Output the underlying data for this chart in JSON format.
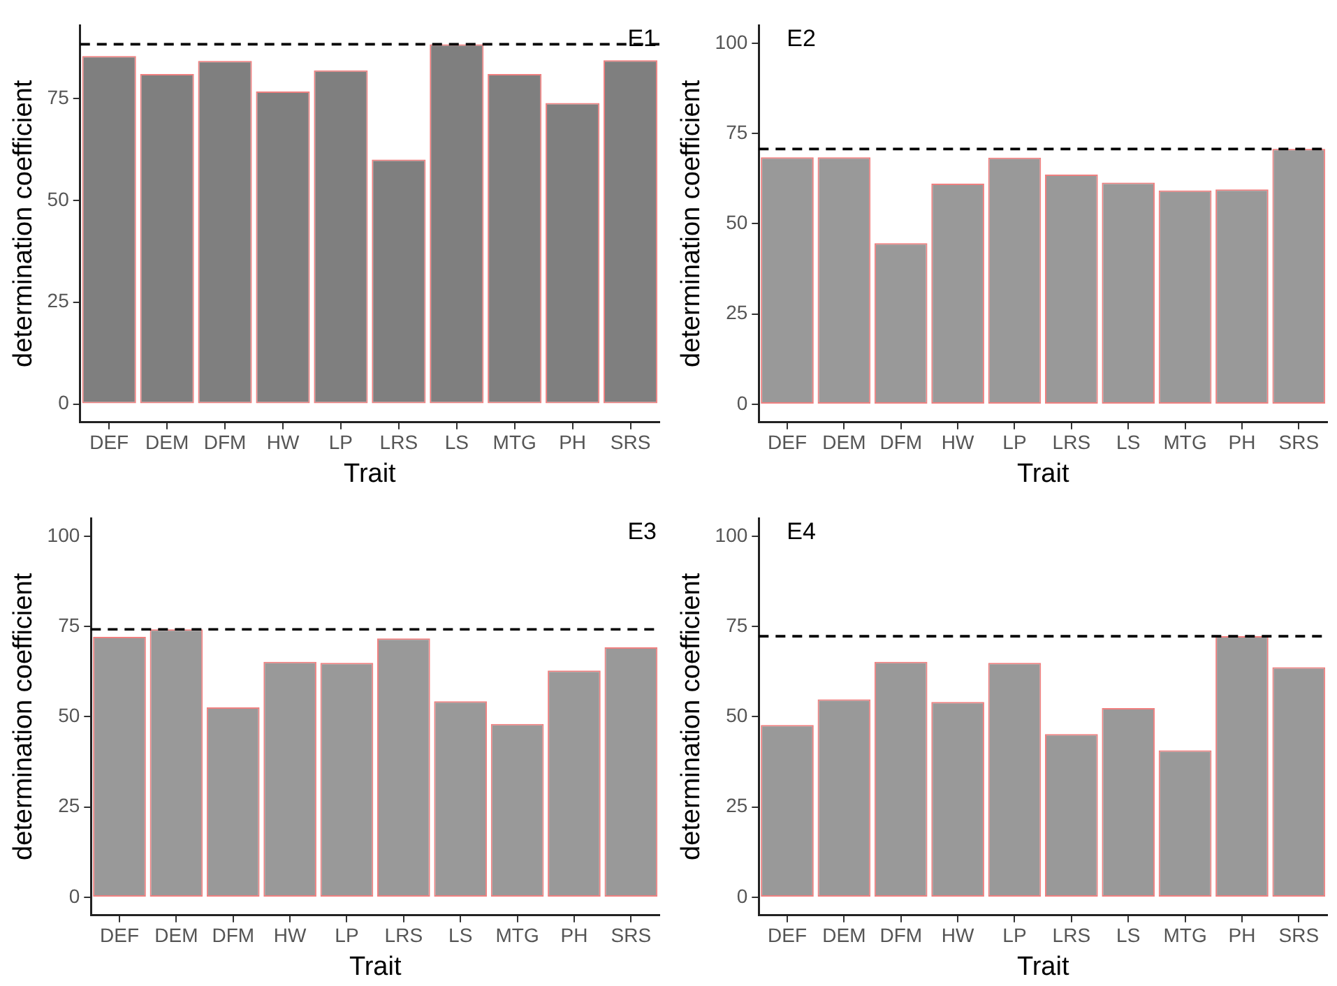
{
  "chart_data": [
    {
      "type": "bar",
      "xlabel": "Trait",
      "ylabel": "determination coefficient",
      "annotations": [
        "E1"
      ],
      "categories": [
        "DEF",
        "DEM",
        "DFM",
        "HW",
        "LP",
        "LRS",
        "LS",
        "MTG",
        "PH",
        "SRS"
      ],
      "series": [
        {
          "color": "#7f7f7f",
          "values": [
            85.4,
            81.0,
            84.2,
            76.7,
            81.9,
            60.0,
            88.3,
            81.0,
            73.9,
            84.4
          ]
        }
      ],
      "ylim": [
        -4.5,
        93
      ],
      "yticks": [
        0,
        25,
        50,
        75
      ],
      "grid": false,
      "legend": false,
      "ref_lines": [
        {
          "axis": "y",
          "value": 88.3,
          "label": null,
          "color": "#000000",
          "line_style": "dashed"
        }
      ]
    },
    {
      "type": "bar",
      "xlabel": "Trait",
      "ylabel": "determination coefficient",
      "annotations": [
        "E2"
      ],
      "categories": [
        "DEF",
        "DEM",
        "DFM",
        "HW",
        "LP",
        "LRS",
        "LS",
        "MTG",
        "PH",
        "SRS"
      ],
      "series": [
        {
          "color": "#999999",
          "values": [
            68.4,
            68.4,
            44.6,
            61.1,
            68.3,
            63.6,
            61.4,
            59.2,
            59.5,
            70.7
          ]
        }
      ],
      "ylim": [
        -5,
        105
      ],
      "yticks": [
        0,
        25,
        50,
        75,
        100
      ],
      "grid": false,
      "legend": false,
      "ref_lines": [
        {
          "axis": "y",
          "value": 70.7,
          "label": null,
          "color": "#000000",
          "line_style": "dashed"
        }
      ]
    },
    {
      "type": "bar",
      "xlabel": "Trait",
      "ylabel": "determination coefficient",
      "annotations": [
        "E3"
      ],
      "categories": [
        "DEF",
        "DEM",
        "DFM",
        "HW",
        "LP",
        "LRS",
        "LS",
        "MTG",
        "PH",
        "SRS"
      ],
      "series": [
        {
          "color": "#999999",
          "values": [
            72.1,
            74.2,
            52.6,
            65.2,
            64.9,
            71.7,
            54.3,
            48.0,
            62.8,
            69.2
          ]
        }
      ],
      "ylim": [
        -5,
        105
      ],
      "yticks": [
        0,
        25,
        50,
        75,
        100
      ],
      "grid": false,
      "legend": false,
      "ref_lines": [
        {
          "axis": "y",
          "value": 74.2,
          "label": null,
          "color": "#000000",
          "line_style": "dashed"
        }
      ]
    },
    {
      "type": "bar",
      "xlabel": "Trait",
      "ylabel": "determination coefficient",
      "annotations": [
        "E4"
      ],
      "categories": [
        "DEF",
        "DEM",
        "DFM",
        "HW",
        "LP",
        "LRS",
        "LS",
        "MTG",
        "PH",
        "SRS"
      ],
      "series": [
        {
          "color": "#999999",
          "values": [
            47.7,
            54.8,
            65.2,
            54.1,
            64.9,
            45.2,
            52.4,
            40.7,
            72.3,
            63.7
          ]
        }
      ],
      "ylim": [
        -5,
        105
      ],
      "yticks": [
        0,
        25,
        50,
        75,
        100
      ],
      "grid": false,
      "legend": false,
      "ref_lines": [
        {
          "axis": "y",
          "value": 72.3,
          "label": null,
          "color": "#000000",
          "line_style": "dashed"
        }
      ]
    }
  ]
}
